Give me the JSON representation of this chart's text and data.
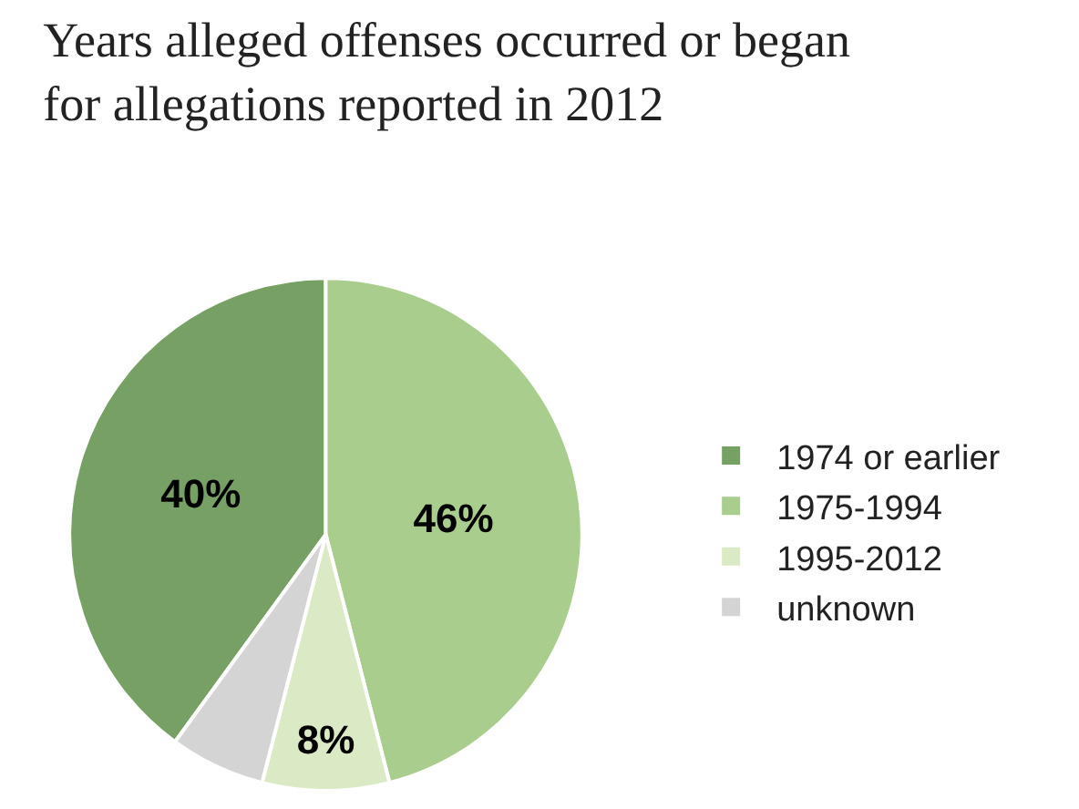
{
  "chart_data": {
    "type": "pie",
    "title": "Years alleged offenses occurred or began\nfor allegations reported in 2012",
    "categories": [
      "1974 or earlier",
      "1975-1994",
      "1995-2012",
      "unknown"
    ],
    "values": [
      40,
      46,
      8,
      6
    ],
    "value_labels": [
      "40%",
      "46%",
      "8%",
      null
    ],
    "colors": [
      "#77a064",
      "#a9cd8d",
      "#daeac4",
      "#d4d4d4"
    ],
    "legend": "right"
  }
}
